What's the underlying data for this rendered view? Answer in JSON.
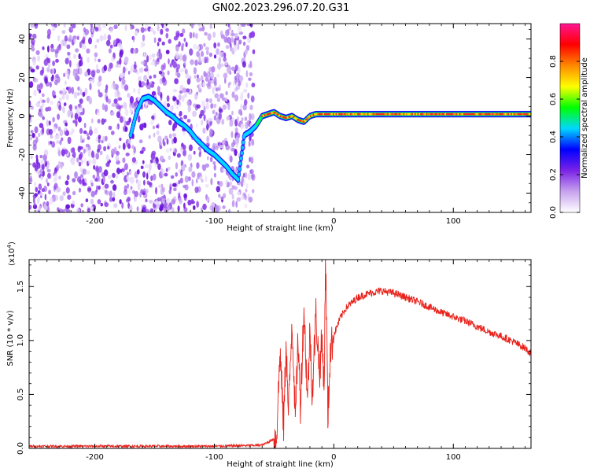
{
  "figure_title": "GN02.2023.296.07.20.G31",
  "chart_data": [
    {
      "type": "heatmap",
      "xlabel": "Height of straight line (km)",
      "ylabel": "Frequency (Hz)",
      "xlim": [
        -255,
        165
      ],
      "ylim": [
        -50,
        48
      ],
      "xticks": [
        -200,
        -100,
        0,
        100
      ],
      "xtick_labels": [
        "-200",
        "-100",
        "0",
        "100"
      ],
      "yticks": [
        -40,
        -20,
        0,
        20,
        40
      ],
      "ytick_labels": [
        "-40",
        "-20",
        "0",
        "20",
        "40"
      ],
      "noise_region_x": [
        -255,
        -67
      ],
      "ridge": {
        "x": [
          -170,
          -165,
          -160,
          -155,
          -150,
          -145,
          -140,
          -135,
          -130,
          -125,
          -120,
          -115,
          -110,
          -105,
          -100,
          -95,
          -90,
          -85,
          -80,
          -75,
          -70,
          -65,
          -60,
          -55,
          -50,
          -45,
          -40,
          -35,
          -30,
          -25,
          -20,
          -15,
          -10,
          -5,
          0,
          20,
          40,
          60,
          80,
          100,
          120,
          140,
          165
        ],
        "y": [
          -10,
          2,
          9,
          10,
          8,
          5,
          2,
          0,
          -3,
          -5,
          -8,
          -12,
          -15,
          -18,
          -20,
          -23,
          -26,
          -30,
          -33,
          -10,
          -8,
          -5,
          0,
          1,
          2,
          0,
          -1,
          0,
          -2,
          -3,
          0,
          1,
          1,
          1,
          1,
          1,
          1,
          1,
          1,
          1,
          1,
          1,
          1
        ]
      },
      "colorbar": {
        "label": "Normalized spectral amplitude",
        "range": [
          0,
          1
        ],
        "ticks": [
          0.0,
          0.2,
          0.4,
          0.6,
          0.8
        ],
        "tick_labels": [
          "0.0",
          "0.2",
          "0.4",
          "0.6",
          "0.8"
        ],
        "colors": [
          "#ffffff",
          "#c7a2ee",
          "#7a22e6",
          "#0000ff",
          "#00d8ff",
          "#00ff00",
          "#ffff00",
          "#ff8800",
          "#ff0000",
          "#ff1493"
        ]
      },
      "grid": false
    },
    {
      "type": "line",
      "xlabel": "Height of straight line (km)",
      "ylabel": "SNR (10 * v/v)",
      "y_multiplier": "(x10",
      "y_multiplier_exp": "4",
      "xlim": [
        -255,
        165
      ],
      "ylim": [
        0,
        1.75
      ],
      "xticks": [
        -200,
        -100,
        0,
        100
      ],
      "xtick_labels": [
        "-200",
        "-100",
        "0",
        "100"
      ],
      "yticks": [
        0.0,
        0.5,
        1.0,
        1.5
      ],
      "ytick_labels": [
        "0.0",
        "0.5",
        "1.0",
        "1.5"
      ],
      "series": [
        {
          "color": "#e8231c",
          "x": [
            -255,
            -200,
            -150,
            -100,
            -60,
            -48,
            -45,
            -42,
            -40,
            -38,
            -35,
            -32,
            -30,
            -28,
            -25,
            -22,
            -20,
            -18,
            -15,
            -12,
            -10,
            -8,
            -7,
            -6,
            -5,
            -3,
            0,
            5,
            10,
            20,
            30,
            40,
            50,
            60,
            70,
            80,
            90,
            100,
            110,
            120,
            130,
            140,
            150,
            160,
            165
          ],
          "y": [
            0.02,
            0.02,
            0.02,
            0.02,
            0.03,
            0.1,
            0.9,
            0.2,
            1.0,
            0.3,
            1.2,
            0.25,
            1.05,
            0.4,
            1.3,
            0.45,
            1.1,
            0.5,
            1.25,
            0.7,
            1.0,
            0.6,
            1.75,
            1.2,
            0.25,
            0.9,
            1.05,
            1.2,
            1.3,
            1.4,
            1.44,
            1.46,
            1.44,
            1.4,
            1.36,
            1.31,
            1.26,
            1.22,
            1.18,
            1.13,
            1.08,
            1.04,
            0.99,
            0.93,
            0.88
          ]
        }
      ],
      "grid": false
    }
  ]
}
